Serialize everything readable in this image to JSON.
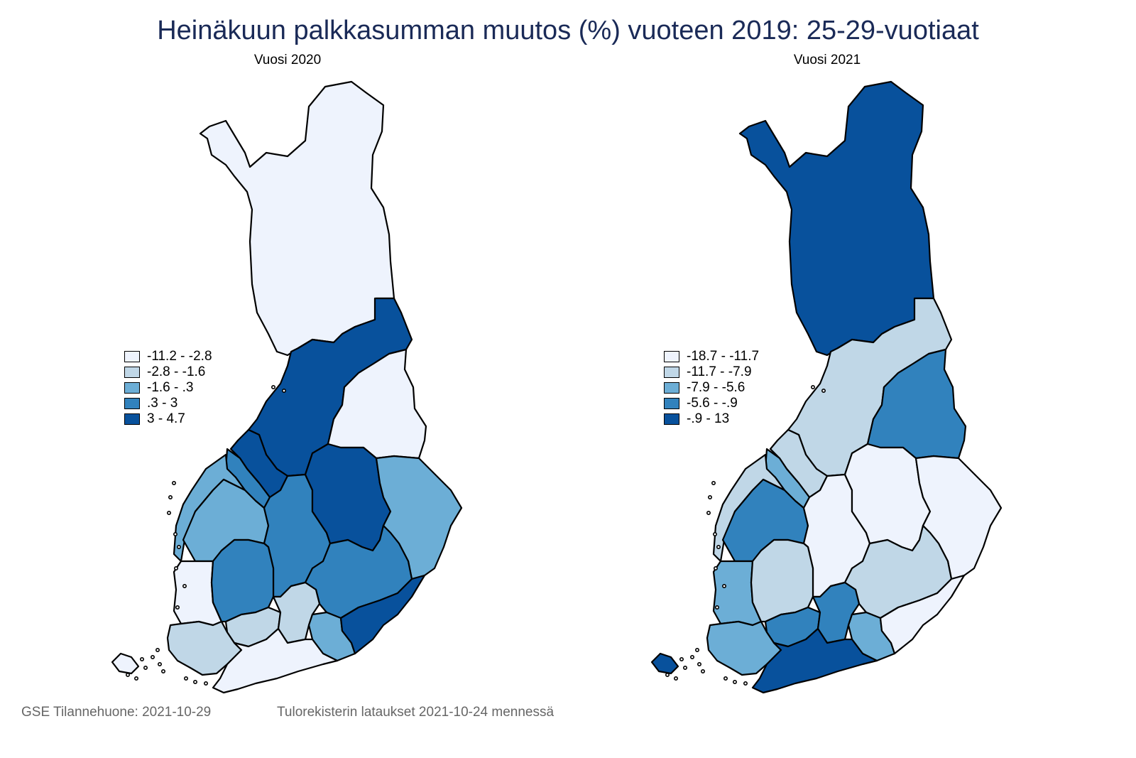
{
  "title": "Heinäkuun palkkasumman muutos (%) vuoteen 2019: 25-29-vuotiaat",
  "colors": {
    "c1": "#eef3fd",
    "c2": "#c0d7e7",
    "c3": "#6caed6",
    "c4": "#3182bd",
    "c5": "#08519c"
  },
  "maps": [
    {
      "subtitle": "Vuosi 2020",
      "legend": [
        {
          "label": "-11.2  -  -2.8",
          "color": "#eef3fd"
        },
        {
          "label": "-2.8  -  -1.6",
          "color": "#c0d7e7"
        },
        {
          "label": "-1.6  -  .3",
          "color": "#6caed6"
        },
        {
          "label": ".3  -  3",
          "color": "#3182bd"
        },
        {
          "label": "3  -  4.7",
          "color": "#08519c"
        }
      ],
      "regions": {
        "lappi": "c1",
        "koillismaa": "c5",
        "kainuu": "c1",
        "ostrobothnia_n": "c5",
        "keski_pohjanmaa": "c4",
        "pohjanmaa": "c3",
        "etela_pohjanmaa": "c3",
        "keski_suomi": "c4",
        "pohjois_savo": "c5",
        "pohjois_karjala": "c3",
        "satakunta": "c1",
        "pirkanmaa": "c4",
        "etela_savo": "c4",
        "kanta_hame": "c2",
        "paijat_hame": "c2",
        "kymenlaakso": "c3",
        "etela_karjala": "c5",
        "varsinais_suomi": "c2",
        "uusimaa": "c1",
        "ahvenanmaa": "c1"
      }
    },
    {
      "subtitle": "Vuosi 2021",
      "legend": [
        {
          "label": "-18.7  -  -11.7",
          "color": "#eef3fd"
        },
        {
          "label": "-11.7  -  -7.9",
          "color": "#c0d7e7"
        },
        {
          "label": "-7.9  -  -5.6",
          "color": "#6caed6"
        },
        {
          "label": "-5.6  -  -.9",
          "color": "#3182bd"
        },
        {
          "label": "-.9  -  13",
          "color": "#08519c"
        }
      ],
      "regions": {
        "lappi": "c5",
        "koillismaa": "c2",
        "kainuu": "c4",
        "ostrobothnia_n": "c2",
        "keski_pohjanmaa": "c3",
        "pohjanmaa": "c2",
        "etela_pohjanmaa": "c4",
        "keski_suomi": "c1",
        "pohjois_savo": "c1",
        "pohjois_karjala": "c1",
        "satakunta": "c3",
        "pirkanmaa": "c2",
        "etela_savo": "c2",
        "kanta_hame": "c4",
        "paijat_hame": "c4",
        "kymenlaakso": "c3",
        "etela_karjala": "c1",
        "varsinais_suomi": "c3",
        "uusimaa": "c5",
        "ahvenanmaa": "c5"
      }
    }
  ],
  "footer": {
    "left": "GSE Tilannehuone: 2021-10-29",
    "right": "Tulorekisterin lataukset 2021-10-24 mennessä"
  }
}
